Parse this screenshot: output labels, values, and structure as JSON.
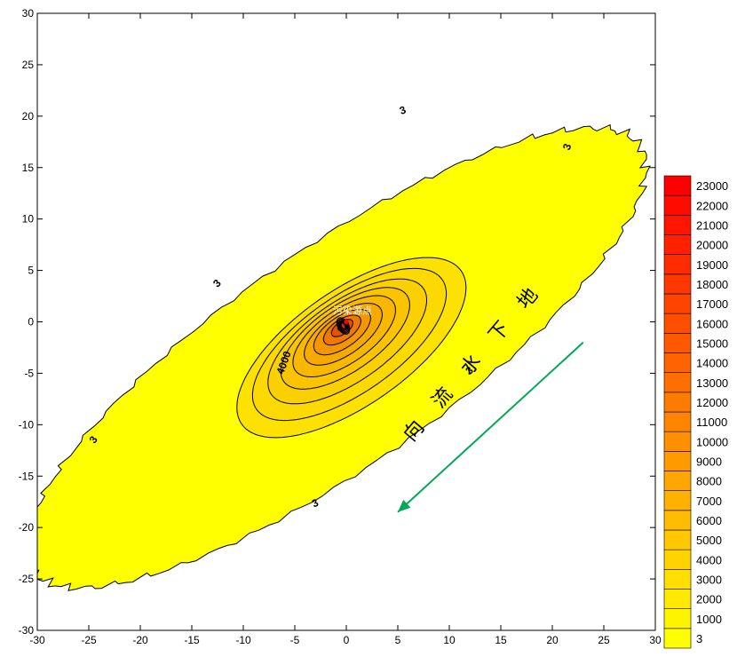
{
  "chart_data": {
    "type": "contour",
    "title": "",
    "xlabel": "",
    "ylabel": "",
    "xlim": [
      -30,
      30
    ],
    "ylim": [
      -30,
      30
    ],
    "x_ticks": [
      -30,
      -25,
      -20,
      -15,
      -10,
      -5,
      0,
      5,
      10,
      15,
      20,
      25,
      30
    ],
    "y_ticks": [
      -30,
      -25,
      -20,
      -15,
      -10,
      -5,
      0,
      5,
      10,
      15,
      20,
      25,
      30
    ],
    "grid": false,
    "plume_axis_angle_deg": 35,
    "outer_contour": {
      "level": 3,
      "color": "#FFFF00",
      "center": [
        -1,
        -3.5
      ],
      "semi_major": 36,
      "semi_minor": 10.5
    },
    "inner_contours": [
      {
        "level": 1000,
        "center": [
          0.5,
          -2.5
        ],
        "semi_major": 13.0,
        "semi_minor": 5.6,
        "color": "#FDE100"
      },
      {
        "level": 2000,
        "center": [
          0.3,
          -2.2
        ],
        "semi_major": 11.0,
        "semi_minor": 4.7,
        "color": "#FCDA00"
      },
      {
        "level": 3000,
        "center": [
          0.1,
          -1.9
        ],
        "semi_major": 9.0,
        "semi_minor": 3.9,
        "color": "#FBD000"
      },
      {
        "level": 4000,
        "center": [
          -0.1,
          -1.6
        ],
        "semi_major": 7.3,
        "semi_minor": 3.2,
        "color": "#FAC500"
      },
      {
        "level": 5000,
        "center": [
          -0.2,
          -1.4
        ],
        "semi_major": 5.8,
        "semi_minor": 2.6,
        "color": "#F8B800"
      },
      {
        "level": 6000,
        "center": [
          -0.3,
          -1.2
        ],
        "semi_major": 4.4,
        "semi_minor": 2.0,
        "color": "#F6AA00"
      },
      {
        "level": 8000,
        "center": [
          -0.4,
          -1.0
        ],
        "semi_major": 3.2,
        "semi_minor": 1.5,
        "color": "#F39600"
      },
      {
        "level": 11000,
        "center": [
          -0.4,
          -0.8
        ],
        "semi_major": 2.1,
        "semi_minor": 1.0,
        "color": "#EE7800"
      },
      {
        "level": 15000,
        "center": [
          -0.4,
          -0.6
        ],
        "semi_major": 1.2,
        "semi_minor": 0.6,
        "color": "#E85000"
      },
      {
        "level": 20000,
        "center": [
          -0.3,
          -0.4
        ],
        "semi_major": 0.6,
        "semi_minor": 0.35,
        "color": "#E02000"
      }
    ],
    "contour_labels": [
      {
        "text": "3",
        "x": 5.5,
        "y": 20.5,
        "angle": -20
      },
      {
        "text": "3",
        "x": 21.5,
        "y": 17.0,
        "angle": -70
      },
      {
        "text": "3",
        "x": -12.5,
        "y": 3.7,
        "angle": -45
      },
      {
        "text": "3",
        "x": 12.0,
        "y": -4.8,
        "angle": -40
      },
      {
        "text": "3",
        "x": -24.5,
        "y": -11.5,
        "angle": -55
      },
      {
        "text": "3",
        "x": -3.0,
        "y": -17.7,
        "angle": -25
      },
      {
        "text": "4000",
        "x": -6.0,
        "y": -4.0,
        "angle": -70
      }
    ],
    "source": {
      "label": "污染源点",
      "x": 0,
      "y": 0,
      "color": "#FF0000"
    },
    "flow": {
      "chars": [
        "地",
        "下",
        "水",
        "流",
        "向"
      ],
      "arrow_from": [
        23,
        -2
      ],
      "arrow_to": [
        5,
        -18.5
      ],
      "color": "#00A859"
    },
    "colorbar": {
      "levels": [
        3,
        1000,
        2000,
        3000,
        4000,
        5000,
        6000,
        7000,
        8000,
        9000,
        10000,
        11000,
        12000,
        13000,
        14000,
        15000,
        16000,
        17000,
        18000,
        19000,
        20000,
        21000,
        22000,
        23000
      ],
      "labels": [
        "3",
        "1000",
        "2000",
        "3000",
        "4000",
        "5000",
        "6000",
        "7000",
        "8000",
        "9000",
        "10000",
        "11000",
        "12000",
        "13000",
        "14000",
        "15000",
        "16000",
        "17000",
        "18000",
        "19000",
        "20000",
        "21000",
        "22000",
        "23000"
      ],
      "color_low": "#FFFF00",
      "color_high": "#FF0000",
      "position": "right"
    }
  }
}
